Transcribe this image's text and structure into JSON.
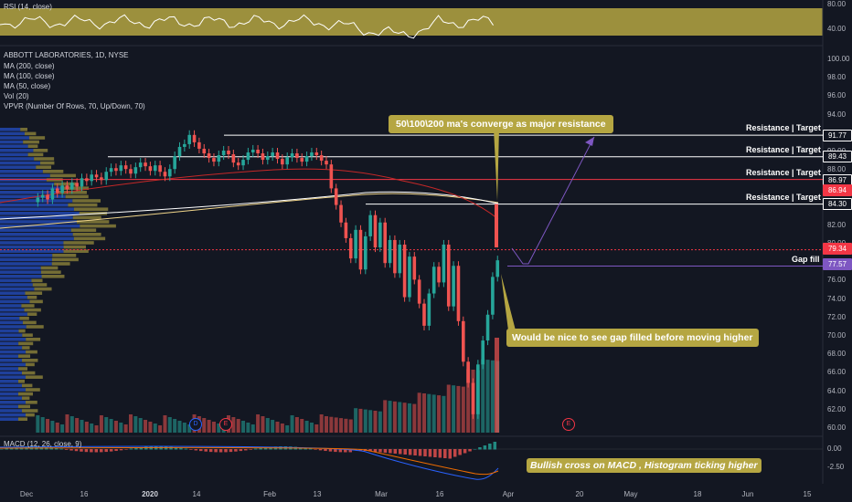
{
  "symbol_title": "ABBOTT LABORATORIES, 1D, NYSE",
  "indicators": [
    "MA (200, close)",
    "MA (100, close)",
    "MA (50, close)",
    "Vol (20)",
    "VPVR (Number Of Rows, 70, Up/Down, 70)"
  ],
  "rsi_label": "RSI (14, close)",
  "macd_label": "MACD (12, 26, close, 9)",
  "price_axis": [
    "100.00",
    "98.00",
    "96.00",
    "94.00",
    "92.00",
    "90.00",
    "88.00",
    "86.00",
    "84.00",
    "82.00",
    "80.00",
    "78.00",
    "76.00",
    "74.00",
    "72.00",
    "70.00",
    "68.00",
    "66.00",
    "64.00",
    "62.00",
    "60.00"
  ],
  "rsi_axis": [
    "80.00",
    "40.00"
  ],
  "macd_axis": [
    "0.00",
    "-2.50"
  ],
  "price_tags": [
    {
      "value": "91.77",
      "color": "#131722",
      "border": "#ffffff"
    },
    {
      "value": "89.43",
      "color": "#131722",
      "border": "#ffffff"
    },
    {
      "value": "86.97",
      "color": "#131722",
      "border": "#ffffff"
    },
    {
      "value": "86.94",
      "color": "#f23645",
      "border": "#f23645"
    },
    {
      "value": "84.30",
      "color": "#131722",
      "border": "#ffffff"
    },
    {
      "value": "79.34",
      "color": "#f23645",
      "border": "#f23645"
    },
    {
      "value": "77.57",
      "color": "#7e57c2",
      "border": "#7e57c2"
    }
  ],
  "levels": [
    {
      "label": "Resistance | Target",
      "price": 91.77,
      "color": "#ffffff"
    },
    {
      "label": "Resistance | Target",
      "price": 89.43,
      "color": "#ffffff"
    },
    {
      "label": "Resistance | Target",
      "price": 86.97,
      "color": "#f23645"
    },
    {
      "label": "Resistance | Target",
      "price": 84.3,
      "color": "#ffffff"
    },
    {
      "label": "Gap fill",
      "price": 77.57,
      "color": "#7e57c2"
    }
  ],
  "callouts": {
    "top": "50\\100\\200 ma's converge as major resistance",
    "middle": "Would be nice to see gap filled before moving higher",
    "bottom": "Bullish cross on MACD , Histogram ticking higher"
  },
  "date_axis": [
    {
      "label": "Dec",
      "bold": false
    },
    {
      "label": "16",
      "bold": false
    },
    {
      "label": "2020",
      "bold": true
    },
    {
      "label": "14",
      "bold": false
    },
    {
      "label": "Feb",
      "bold": false
    },
    {
      "label": "13",
      "bold": false
    },
    {
      "label": "Mar",
      "bold": false
    },
    {
      "label": "16",
      "bold": false
    },
    {
      "label": "Apr",
      "bold": false
    },
    {
      "label": "20",
      "bold": false
    },
    {
      "label": "May",
      "bold": false
    },
    {
      "label": "18",
      "bold": false
    },
    {
      "label": "Jun",
      "bold": false
    },
    {
      "label": "15",
      "bold": false
    }
  ],
  "event_badges": [
    "D",
    "E",
    "E"
  ],
  "colors": {
    "up": "#26a69a",
    "down": "#ef5350",
    "ma200": "#ffffff",
    "ma100": "#f0d58a",
    "ma50": "#c62828",
    "rsi_band": "#b5a642",
    "vp_up": "#2962ff",
    "vp_down": "#b5a642",
    "arrow": "#7e57c2"
  }
}
